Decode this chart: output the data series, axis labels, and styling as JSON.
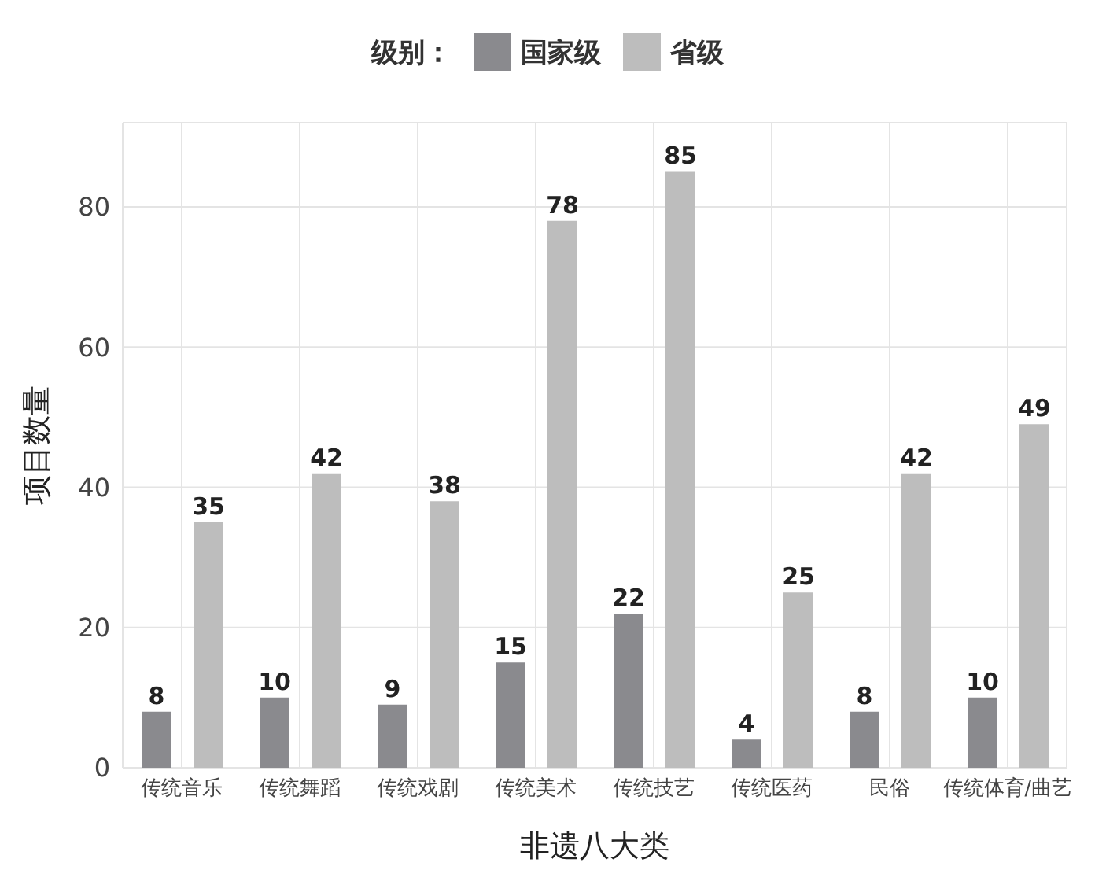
{
  "chart_data": {
    "type": "bar",
    "legend_title": "级别：",
    "xlabel": "非遗八大类",
    "ylabel": "项目数量",
    "categories": [
      "传统音乐",
      "传统舞蹈",
      "传统戏剧",
      "传统美术",
      "传统技艺",
      "传统医药",
      "民俗",
      "传统体育/曲艺"
    ],
    "series": [
      {
        "name": "国家级",
        "color": "#8a8a8e",
        "values": [
          8,
          10,
          9,
          15,
          22,
          4,
          8,
          10
        ]
      },
      {
        "name": "省级",
        "color": "#bdbdbd",
        "values": [
          35,
          42,
          38,
          78,
          85,
          25,
          42,
          49
        ]
      }
    ],
    "ylim": [
      0,
      92
    ],
    "yticks": [
      0,
      20,
      40,
      60,
      80
    ],
    "grid": true,
    "legend": "top",
    "data_labels": true
  }
}
